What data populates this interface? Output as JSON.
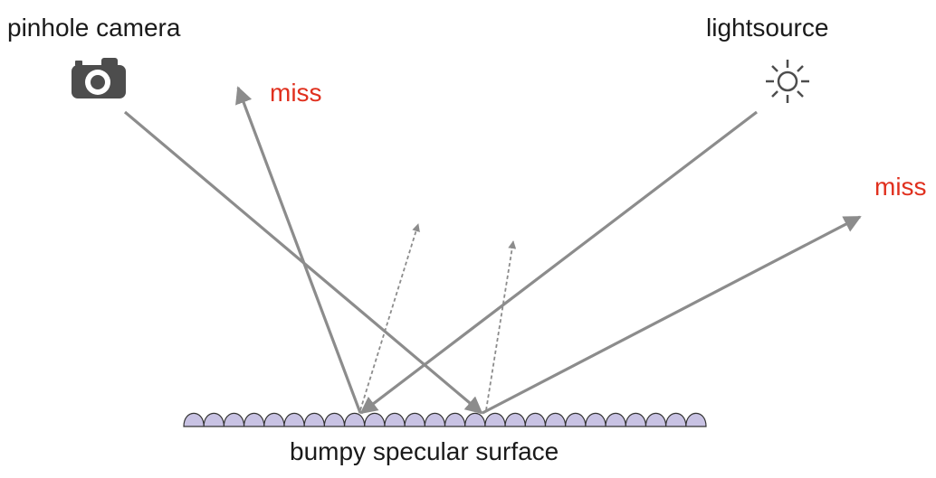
{
  "labels": {
    "camera": "pinhole camera",
    "light": "lightsource",
    "miss_left": "miss",
    "miss_right": "miss",
    "surface": "bumpy specular surface"
  },
  "icons": {
    "camera": "camera-icon",
    "light": "sun-icon"
  },
  "colors": {
    "ray": "#8c8c8c",
    "miss": "#e0301e",
    "bump_fill": "#c8c2e3",
    "bump_stroke": "#333333",
    "icon": "#4d4d4d",
    "text": "#1a1a1a"
  }
}
